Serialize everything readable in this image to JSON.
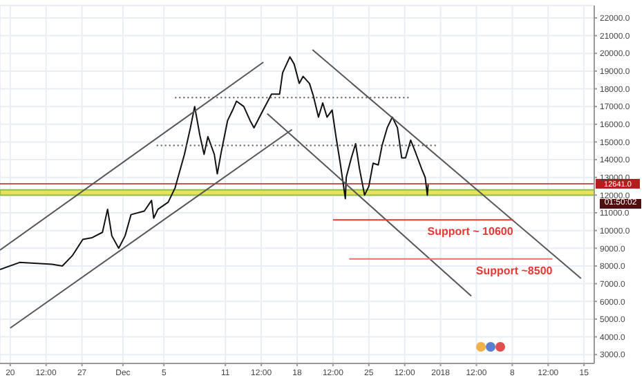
{
  "chart_data": {
    "type": "line",
    "marker": "none",
    "grid": true,
    "xlim": [
      "2017-11-19",
      "2018-01-16"
    ],
    "xticks": [
      {
        "value": "2017-11-20",
        "label": "20"
      },
      {
        "value": "2017-11-23T12:00",
        "label": "12:00"
      },
      {
        "value": "2017-11-27",
        "label": "27"
      },
      {
        "value": "2017-12-01",
        "label": "Dec"
      },
      {
        "value": "2017-12-05",
        "label": "5"
      },
      {
        "value": "2017-12-11",
        "label": "11"
      },
      {
        "value": "2017-12-14T12:00",
        "label": "12:00"
      },
      {
        "value": "2017-12-18",
        "label": "18"
      },
      {
        "value": "2017-12-21T12:00",
        "label": "12:00"
      },
      {
        "value": "2017-12-25",
        "label": "25"
      },
      {
        "value": "2017-12-28T12:00",
        "label": "12:00"
      },
      {
        "value": "2018-01-01",
        "label": "2018"
      },
      {
        "value": "2018-01-04T12:00",
        "label": "12:00"
      },
      {
        "value": "2018-01-08",
        "label": "8"
      },
      {
        "value": "2018-01-11T12:00",
        "label": "12:00"
      },
      {
        "value": "2018-01-15",
        "label": "15"
      }
    ],
    "ylim": [
      2500,
      22700
    ],
    "yticks": [
      {
        "value": 3000,
        "label": "3000.0"
      },
      {
        "value": 4000,
        "label": "4000.0"
      },
      {
        "value": 5000,
        "label": "5000.0"
      },
      {
        "value": 6000,
        "label": "6000.0"
      },
      {
        "value": 7000,
        "label": "7000.0"
      },
      {
        "value": 8000,
        "label": "8000.0"
      },
      {
        "value": 9000,
        "label": "9000.0"
      },
      {
        "value": 10000,
        "label": "10000.0"
      },
      {
        "value": 11000,
        "label": "11000.0"
      },
      {
        "value": 12000,
        "label": "12000.0"
      },
      {
        "value": 13000,
        "label": "13000.0"
      },
      {
        "value": 14000,
        "label": "14000.0"
      },
      {
        "value": 15000,
        "label": "15000.0"
      },
      {
        "value": 16000,
        "label": "16000.0"
      },
      {
        "value": 17000,
        "label": "17000.0"
      },
      {
        "value": 18000,
        "label": "18000.0"
      },
      {
        "value": 19000,
        "label": "19000.0"
      },
      {
        "value": 20000,
        "label": "20000.0"
      },
      {
        "value": 21000,
        "label": "21000.0"
      },
      {
        "value": 22000,
        "label": "22000.0"
      }
    ],
    "series": [
      {
        "type": "line",
        "color": "#111111",
        "x": [
          "2017-11-19T00:00",
          "2017-11-20T22:00",
          "2017-11-24T02:00",
          "2017-11-25T02:00",
          "2017-11-26T02:00",
          "2017-11-27T02:00",
          "2017-11-28T00:00",
          "2017-11-29T00:00",
          "2017-11-29T12:00",
          "2017-11-29T22:00",
          "2017-11-30T14:00",
          "2017-12-01T05:00",
          "2017-12-01T19:00",
          "2017-12-03T02:00",
          "2017-12-03T19:00",
          "2017-12-04T00:00",
          "2017-12-04T10:00",
          "2017-12-05T10:00",
          "2017-12-06T02:00",
          "2017-12-07T00:00",
          "2017-12-07T14:00",
          "2017-12-08T00:00",
          "2017-12-08T12:00",
          "2017-12-08T22:00",
          "2017-12-09T07:00",
          "2017-12-09T22:00",
          "2017-12-10T05:00",
          "2017-12-10T14:00",
          "2017-12-11T05:00",
          "2017-12-11T17:00",
          "2017-12-12T02:00",
          "2017-12-12T19:00",
          "2017-12-13T10:00",
          "2017-12-13T19:00",
          "2017-12-14T12:00",
          "2017-12-15T12:00",
          "2017-12-16T07:00",
          "2017-12-16T14:00",
          "2017-12-17T07:00",
          "2017-12-17T17:00",
          "2017-12-18T05:00",
          "2017-12-18T14:00",
          "2017-12-19T05:00",
          "2017-12-19T14:00",
          "2017-12-20T02:00",
          "2017-12-20T12:00",
          "2017-12-20T22:00",
          "2017-12-21T10:00",
          "2017-12-21T19:00",
          "2017-12-22T05:00",
          "2017-12-22T17:00",
          "2017-12-22T19:00",
          "2017-12-23T07:00",
          "2017-12-23T17:00",
          "2017-12-24T02:00",
          "2017-12-24T14:00",
          "2017-12-25T00:00",
          "2017-12-25T10:00",
          "2017-12-25T22:00",
          "2017-12-26T07:00",
          "2017-12-26T19:00",
          "2017-12-27T07:00",
          "2017-12-27T19:00",
          "2017-12-28T05:00",
          "2017-12-28T14:00",
          "2017-12-29T02:00",
          "2017-12-29T12:00",
          "2017-12-30T05:00",
          "2017-12-30T12:00",
          "2017-12-30T17:00",
          "2017-12-30T19:00"
        ],
        "values": [
          7800,
          8200,
          8100,
          8000,
          8600,
          9500,
          9600,
          9900,
          11200,
          9700,
          9000,
          9700,
          10900,
          11100,
          11700,
          10700,
          11200,
          11600,
          12400,
          14300,
          15800,
          17000,
          15400,
          14300,
          15300,
          14300,
          13200,
          14400,
          16200,
          16800,
          17300,
          17000,
          16200,
          15800,
          16600,
          17700,
          17700,
          18900,
          19800,
          19400,
          18300,
          18700,
          18300,
          17600,
          16400,
          17200,
          16400,
          16800,
          15300,
          13800,
          11800,
          13000,
          14100,
          14900,
          13500,
          12000,
          12500,
          13800,
          13700,
          14800,
          15800,
          16400,
          15800,
          14100,
          14100,
          15100,
          14500,
          13400,
          13000,
          12000,
          12600
        ]
      },
      {
        "type": "line",
        "color": "#555555",
        "x": [
          "2017-11-19T00:00",
          "2017-12-14T17:00"
        ],
        "values": [
          8900,
          19500
        ]
      },
      {
        "type": "line",
        "color": "#555555",
        "x": [
          "2017-11-20T00:00",
          "2017-12-17T12:00"
        ],
        "values": [
          4500,
          15700
        ]
      },
      {
        "type": "line",
        "color": "#555555",
        "x": [
          "2017-12-19T12:00",
          "2018-01-14T17:00"
        ],
        "values": [
          20200,
          7300
        ]
      },
      {
        "type": "line",
        "color": "#555555",
        "x": [
          "2017-12-15T02:00",
          "2018-01-04T00:00"
        ],
        "values": [
          16600,
          6300
        ]
      },
      {
        "type": "line",
        "color": "#555555",
        "line_style": "dotted",
        "x": [
          "2017-12-06T02:00",
          "2017-12-29T02:00"
        ],
        "values": [
          17500,
          17500
        ]
      },
      {
        "type": "line",
        "color": "#555555",
        "line_style": "dotted",
        "x": [
          "2017-12-04T07:00",
          "2017-12-31T19:00"
        ],
        "values": [
          14800,
          14800
        ]
      },
      {
        "type": "line",
        "name": "Support ~ 10600",
        "color": "#e53935",
        "x": [
          "2017-12-21T12:00",
          "2018-01-08T02:00"
        ],
        "values": [
          10600,
          10600
        ]
      },
      {
        "type": "line",
        "name": "Support ~8500",
        "color": "#e57363",
        "x": [
          "2017-12-23T02:00",
          "2018-01-11T22:00"
        ],
        "values": [
          8400,
          8400
        ]
      }
    ],
    "ref_lines": [
      {
        "axis": "y",
        "value": 12641,
        "label": "12641.0",
        "color": "#b71c1c"
      }
    ],
    "bands": [
      {
        "axis": "y",
        "from": 12000,
        "to": 12300,
        "color": "#e8e25a"
      }
    ],
    "annotations": [
      "01:50:02"
    ]
  }
}
